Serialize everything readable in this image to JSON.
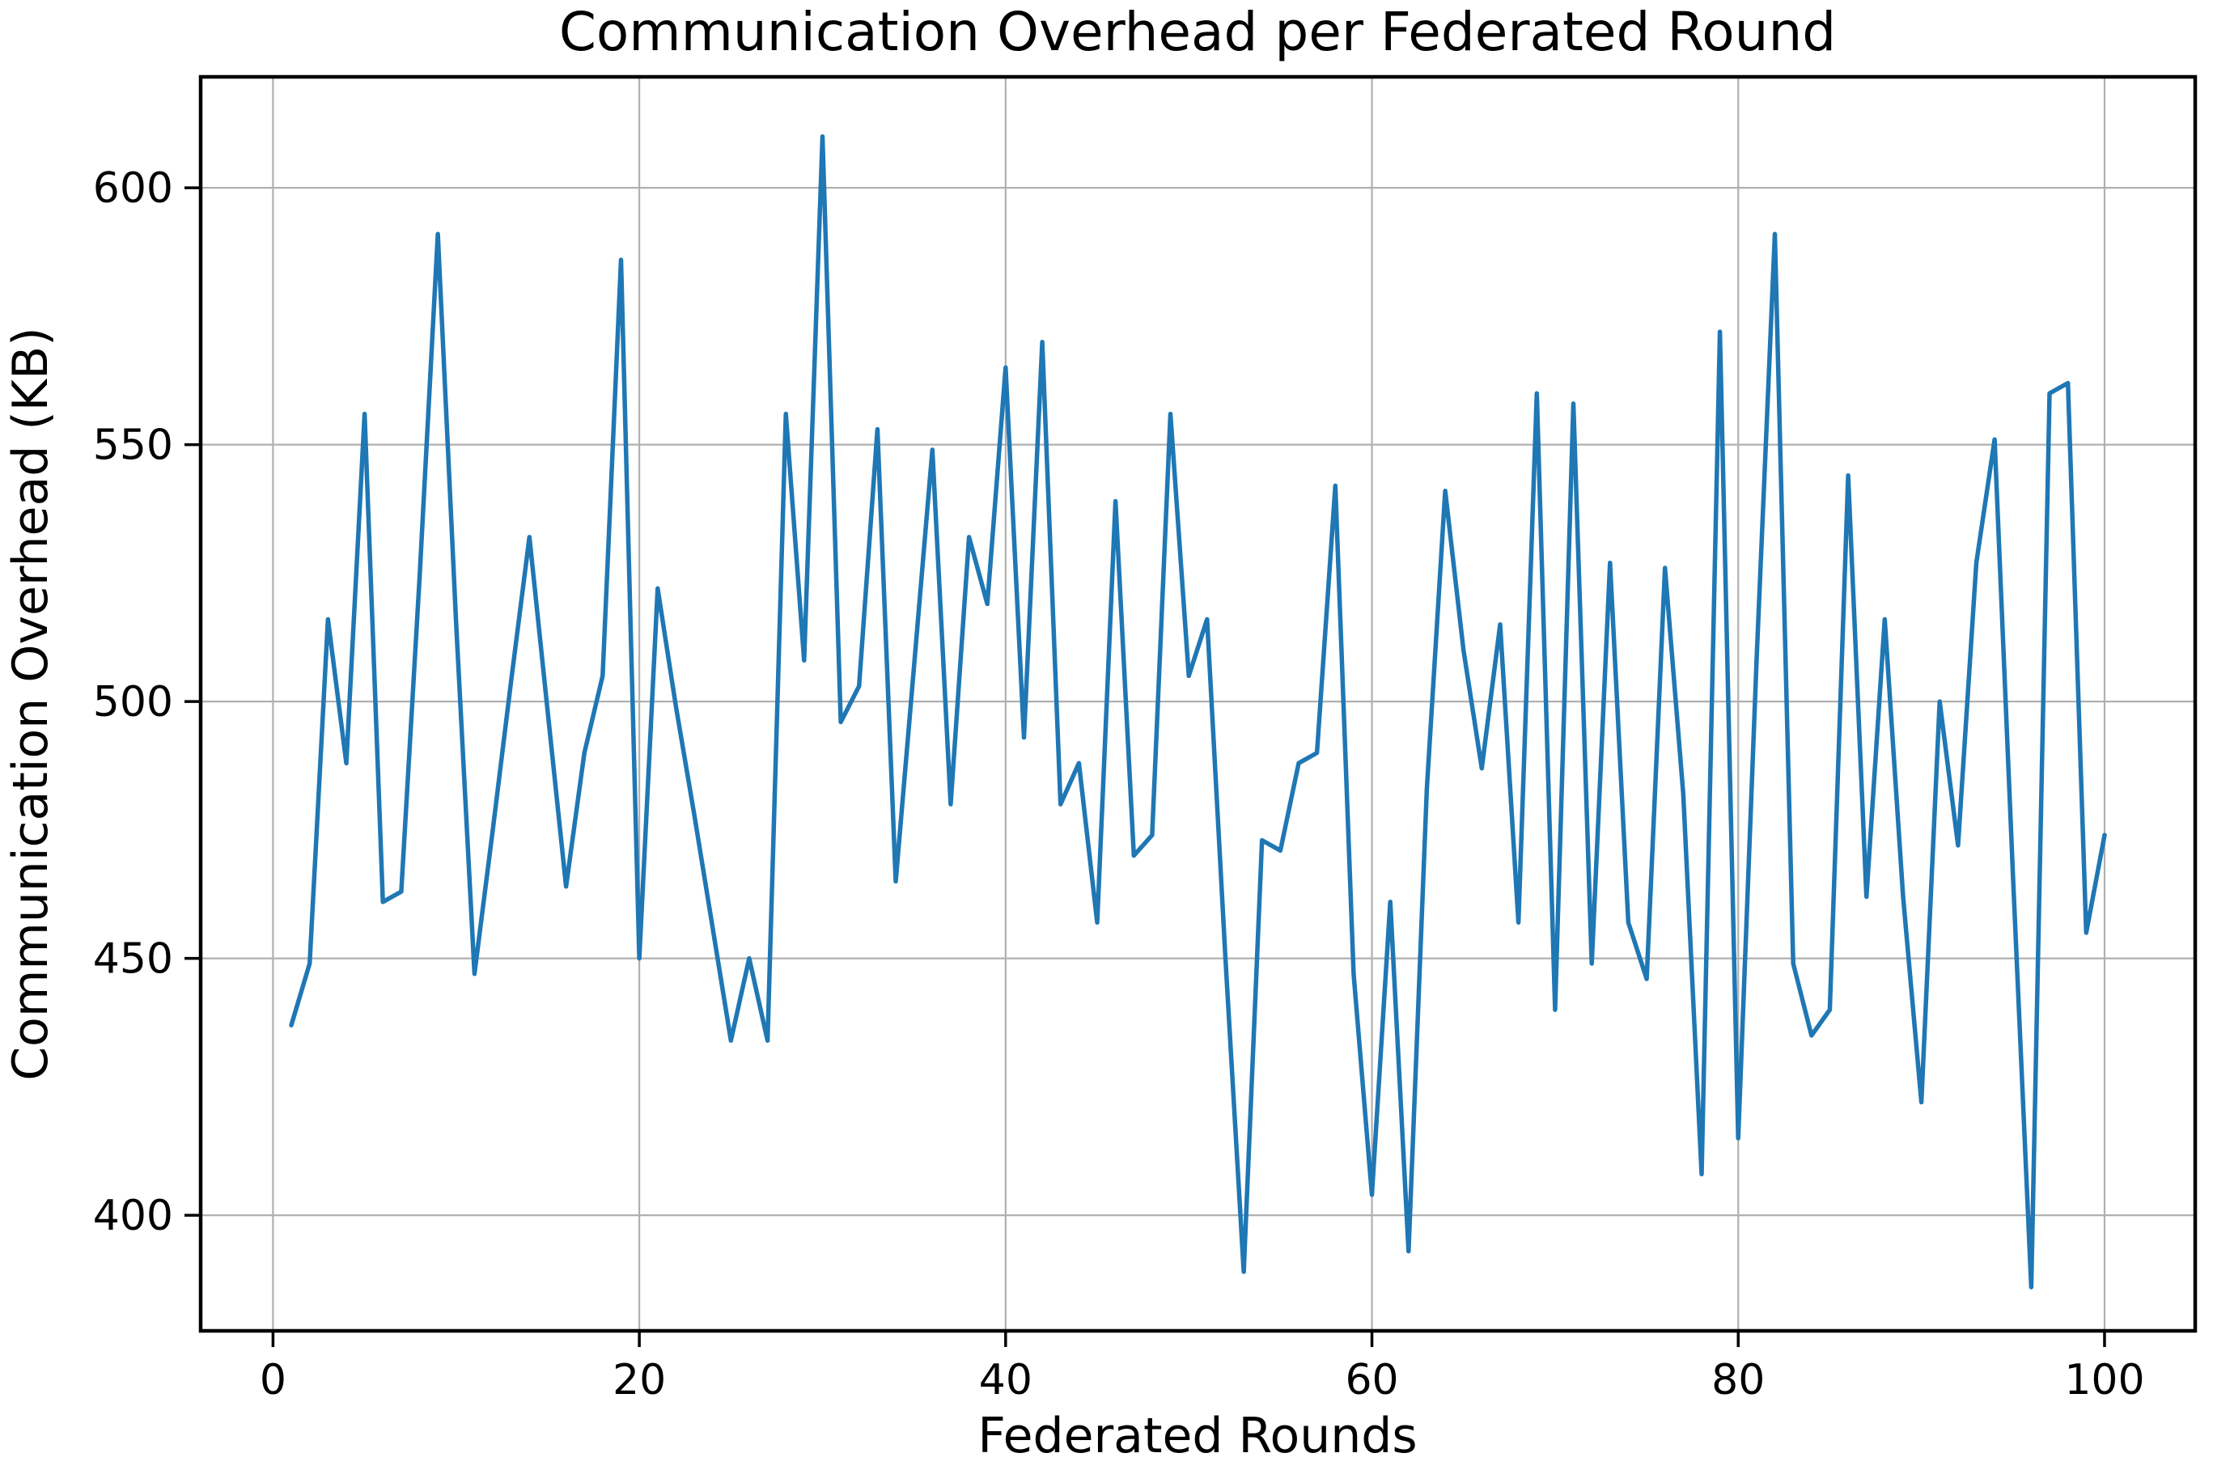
{
  "chart_data": {
    "type": "line",
    "title": "Communication Overhead per Federated Round",
    "xlabel": "Federated Rounds",
    "ylabel": "Communication Overhead (KB)",
    "line_color": "#1f77b4",
    "background_color": "#ffffff",
    "grid": true,
    "grid_color": "#b0b0b0",
    "spine_color": "#000000",
    "legend": "none",
    "x_ticks": [
      0,
      20,
      40,
      60,
      80,
      100
    ],
    "y_ticks": [
      400,
      450,
      500,
      550,
      600
    ],
    "xlim": [
      -3.95,
      104.95
    ],
    "ylim": [
      377.5,
      621.6
    ],
    "x": [
      1,
      2,
      3,
      4,
      5,
      6,
      7,
      8,
      9,
      10,
      11,
      12,
      13,
      14,
      15,
      16,
      17,
      18,
      19,
      20,
      21,
      22,
      23,
      24,
      25,
      26,
      27,
      28,
      29,
      30,
      31,
      32,
      33,
      34,
      35,
      36,
      37,
      38,
      39,
      40,
      41,
      42,
      43,
      44,
      45,
      46,
      47,
      48,
      49,
      50,
      51,
      52,
      53,
      54,
      55,
      56,
      57,
      58,
      59,
      60,
      61,
      62,
      63,
      64,
      65,
      66,
      67,
      68,
      69,
      70,
      71,
      72,
      73,
      74,
      75,
      76,
      77,
      78,
      79,
      80,
      81,
      82,
      83,
      84,
      85,
      86,
      87,
      88,
      89,
      90,
      91,
      92,
      93,
      94,
      95,
      96,
      97,
      98,
      99,
      100
    ],
    "values": [
      437,
      449,
      516,
      488,
      556,
      461,
      463,
      524,
      591,
      515,
      447,
      475,
      504,
      532,
      498,
      464,
      490,
      505,
      586,
      450,
      522,
      499,
      478,
      456,
      434,
      450,
      434,
      556,
      508,
      610,
      496,
      503,
      553,
      465,
      507,
      549,
      480,
      532,
      519,
      565,
      493,
      570,
      480,
      488,
      457,
      539,
      470,
      474,
      556,
      505,
      516,
      450,
      389,
      473,
      471,
      488,
      490,
      542,
      447,
      404,
      461,
      393,
      483,
      541,
      510,
      487,
      515,
      457,
      560,
      440,
      558,
      449,
      527,
      457,
      446,
      526,
      482,
      408,
      572,
      415,
      508,
      591,
      449,
      435,
      440,
      544,
      462,
      516,
      462,
      422,
      500,
      472,
      527,
      551,
      466,
      386,
      560,
      562,
      455,
      474
    ]
  }
}
